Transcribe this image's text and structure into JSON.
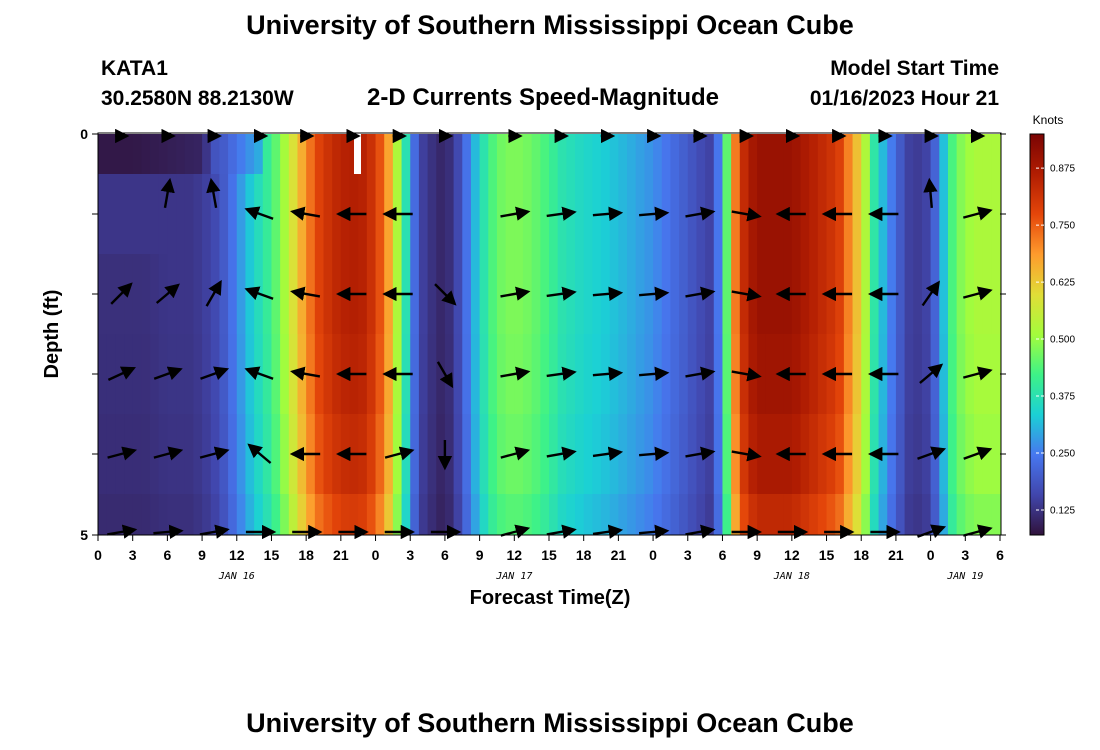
{
  "header": {
    "title": "University of Southern Mississippi Ocean Cube",
    "station": "KATA1",
    "coords": "30.2580N  88.2130W",
    "product": "2-D Currents Speed-Magnitude",
    "start_label": "Model Start Time",
    "start_value": "01/16/2023 Hour 21"
  },
  "footer": {
    "title": "University of Southern Mississippi Ocean Cube"
  },
  "chart_data": {
    "type": "heatmap",
    "title": "2-D Currents Speed-Magnitude",
    "xlabel": "Forecast Time(Z)",
    "ylabel": "Depth (ft)",
    "y_ticks": [
      "0",
      "5"
    ],
    "ylim": [
      0,
      5
    ],
    "x_tick_labels": [
      "0",
      "3",
      "6",
      "9",
      "12",
      "15",
      "18",
      "21",
      "0",
      "3",
      "6",
      "9",
      "12",
      "15",
      "18",
      "21",
      "0",
      "3",
      "6",
      "9",
      "12",
      "15",
      "18",
      "21",
      "0",
      "3",
      "6"
    ],
    "day_labels": [
      "JAN 16",
      "JAN 17",
      "JAN 18",
      "JAN 19"
    ],
    "day_label_positions_hours": [
      12,
      36,
      60,
      75
    ],
    "time_range_hours": [
      0,
      78
    ],
    "colorbar": {
      "unit": "Knots",
      "range": [
        0.07,
        0.95
      ],
      "ticks": [
        "0.125",
        "0.250",
        "0.375",
        "0.500",
        "0.625",
        "0.750",
        "0.875"
      ],
      "tick_values": [
        0.125,
        0.25,
        0.375,
        0.5,
        0.625,
        0.75,
        0.875
      ]
    },
    "speed_profile": {
      "hours": [
        0,
        2,
        4,
        6,
        8,
        9,
        10,
        11,
        12,
        13,
        14,
        15,
        16,
        17,
        18,
        19,
        20,
        21,
        22,
        23,
        24,
        25,
        26,
        27,
        27.5,
        28,
        29,
        30,
        31,
        32,
        33,
        34,
        35,
        36,
        37,
        38,
        39,
        40,
        42,
        44,
        46,
        48,
        50,
        52,
        53,
        54,
        55,
        56,
        57,
        58,
        59,
        60,
        62,
        64,
        66,
        67,
        68,
        69,
        70,
        71,
        72,
        73,
        74,
        75,
        76,
        77,
        78
      ],
      "values": [
        0.12,
        0.12,
        0.12,
        0.13,
        0.13,
        0.14,
        0.16,
        0.2,
        0.26,
        0.32,
        0.37,
        0.42,
        0.5,
        0.6,
        0.7,
        0.78,
        0.82,
        0.85,
        0.86,
        0.85,
        0.8,
        0.7,
        0.5,
        0.3,
        0.2,
        0.15,
        0.12,
        0.1,
        0.15,
        0.25,
        0.35,
        0.43,
        0.47,
        0.48,
        0.47,
        0.45,
        0.42,
        0.38,
        0.35,
        0.33,
        0.3,
        0.27,
        0.22,
        0.17,
        0.15,
        0.3,
        0.7,
        0.85,
        0.9,
        0.9,
        0.9,
        0.9,
        0.85,
        0.8,
        0.6,
        0.4,
        0.3,
        0.22,
        0.15,
        0.14,
        0.16,
        0.3,
        0.45,
        0.5,
        0.52,
        0.52,
        0.52
      ]
    },
    "surface_layer": {
      "hours": [
        0,
        3,
        6,
        9,
        9.5,
        10,
        11,
        12,
        14
      ],
      "values": [
        0.08,
        0.08,
        0.09,
        0.1,
        0.14,
        0.18,
        0.2,
        0.24,
        0.3
      ]
    },
    "vectors": {
      "hours": [
        2,
        6,
        10,
        14,
        18,
        22,
        26,
        30,
        36,
        40,
        44,
        48,
        52,
        56,
        60,
        64,
        68,
        72,
        76
      ],
      "rows": [
        [
          0,
          0,
          0,
          0,
          0,
          0,
          0,
          0,
          0,
          0,
          0,
          0,
          0,
          0,
          0,
          0,
          0,
          0,
          0
        ],
        [
          null,
          80,
          100,
          null,
          null,
          null,
          null,
          null,
          null,
          null,
          null,
          null,
          null,
          null,
          null,
          null,
          null,
          95,
          null
        ],
        [
          null,
          null,
          null,
          160,
          170,
          180,
          180,
          null,
          10,
          8,
          5,
          5,
          10,
          350,
          180,
          180,
          180,
          null,
          15
        ],
        [
          45,
          40,
          60,
          160,
          170,
          180,
          180,
          315,
          10,
          8,
          5,
          5,
          10,
          350,
          180,
          180,
          180,
          55,
          15
        ],
        [
          25,
          20,
          20,
          160,
          170,
          180,
          180,
          300,
          10,
          8,
          5,
          5,
          10,
          350,
          180,
          180,
          180,
          40,
          15
        ],
        [
          15,
          15,
          15,
          140,
          180,
          180,
          15,
          270,
          15,
          10,
          8,
          5,
          10,
          350,
          180,
          180,
          180,
          20,
          20
        ],
        [
          10,
          5,
          10,
          0,
          0,
          0,
          0,
          0,
          15,
          10,
          8,
          5,
          10,
          0,
          0,
          0,
          0,
          20,
          15
        ]
      ]
    }
  }
}
